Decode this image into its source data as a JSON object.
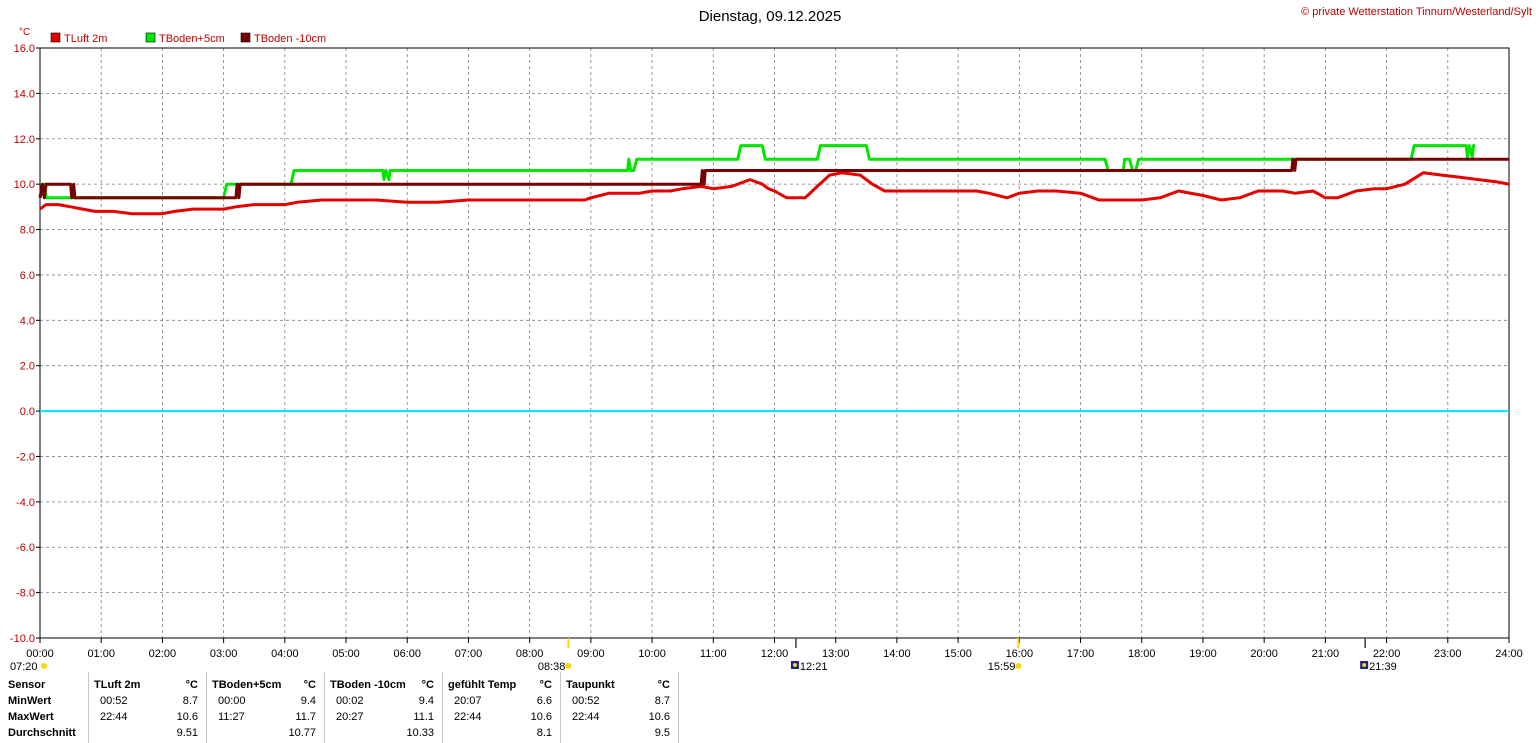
{
  "header": {
    "title": "Dienstag, 09.12.2025",
    "credit": "© private Wetterstation Tinnum/Westerland/Sylt"
  },
  "colors": {
    "tluft": "#e60000",
    "tboden5": "#00e600",
    "tboden10": "#780000",
    "zero_line": "#00e6ff",
    "axis_text": "#c00000",
    "grid": "#808080"
  },
  "chart_data": {
    "type": "line",
    "ylabel": "°C",
    "ylim": [
      -10,
      16
    ],
    "xlim": [
      0,
      24
    ],
    "yticks": [
      "16.0",
      "14.0",
      "12.0",
      "10.0",
      "8.0",
      "6.0",
      "4.0",
      "2.0",
      "0.0",
      "-2.0",
      "-4.0",
      "-6.0",
      "-8.0",
      "-10.0"
    ],
    "xticks": [
      "00:00",
      "01:00",
      "02:00",
      "03:00",
      "04:00",
      "05:00",
      "06:00",
      "07:00",
      "08:00",
      "09:00",
      "10:00",
      "11:00",
      "12:00",
      "13:00",
      "14:00",
      "15:00",
      "16:00",
      "17:00",
      "18:00",
      "19:00",
      "20:00",
      "21:00",
      "22:00",
      "23:00",
      "24:00"
    ],
    "grid": true,
    "legend_position": "top-left",
    "sun_markers": [
      {
        "label": "07:20",
        "kind": "sunrise"
      },
      {
        "label": "08:38",
        "kind": "sun"
      },
      {
        "label": "12:21",
        "kind": "moon"
      },
      {
        "label": "15:59",
        "kind": "sun"
      },
      {
        "label": "21:39",
        "kind": "moon"
      }
    ],
    "series": [
      {
        "name": "TLuft 2m",
        "color": "#e60000",
        "x": [
          0,
          0.1,
          0.3,
          0.5,
          0.7,
          0.9,
          1.0,
          1.2,
          1.5,
          1.8,
          2.0,
          2.2,
          2.5,
          2.8,
          3.0,
          3.2,
          3.5,
          4.0,
          4.2,
          4.6,
          5.0,
          5.3,
          5.5,
          6.0,
          6.5,
          7.0,
          7.5,
          8.0,
          8.5,
          8.9,
          9.0,
          9.3,
          9.8,
          10.0,
          10.3,
          10.5,
          10.8,
          11.0,
          11.3,
          11.6,
          11.8,
          11.9,
          12.0,
          12.2,
          12.5,
          12.7,
          12.9,
          13.1,
          13.4,
          13.6,
          13.8,
          14.0,
          14.5,
          15.0,
          15.3,
          15.5,
          15.8,
          16.0,
          16.3,
          16.6,
          17.0,
          17.3,
          17.6,
          18.0,
          18.3,
          18.6,
          19.0,
          19.3,
          19.6,
          19.9,
          20.1,
          20.3,
          20.5,
          20.8,
          21.0,
          21.2,
          21.5,
          21.8,
          22.0,
          22.3,
          22.6,
          22.9,
          23.2,
          23.5,
          23.8,
          24.0
        ],
        "values": [
          8.9,
          9.1,
          9.1,
          9.0,
          8.9,
          8.8,
          8.8,
          8.8,
          8.7,
          8.7,
          8.7,
          8.8,
          8.9,
          8.9,
          8.9,
          9.0,
          9.1,
          9.1,
          9.2,
          9.3,
          9.3,
          9.3,
          9.3,
          9.2,
          9.2,
          9.3,
          9.3,
          9.3,
          9.3,
          9.3,
          9.4,
          9.6,
          9.6,
          9.7,
          9.7,
          9.8,
          9.9,
          9.8,
          9.9,
          10.2,
          10.0,
          9.8,
          9.7,
          9.4,
          9.4,
          9.9,
          10.4,
          10.5,
          10.4,
          10.0,
          9.7,
          9.7,
          9.7,
          9.7,
          9.7,
          9.6,
          9.4,
          9.6,
          9.7,
          9.7,
          9.6,
          9.3,
          9.3,
          9.3,
          9.4,
          9.7,
          9.5,
          9.3,
          9.4,
          9.7,
          9.7,
          9.7,
          9.6,
          9.7,
          9.4,
          9.4,
          9.7,
          9.8,
          9.8,
          10.0,
          10.5,
          10.4,
          10.3,
          10.2,
          10.1,
          10.0
        ]
      },
      {
        "name": "TBoden+5cm",
        "color": "#00e600",
        "x": [
          0,
          0.08,
          0.1,
          0.5,
          3.0,
          3.05,
          3.08,
          3.3,
          4.1,
          4.15,
          5.6,
          5.62,
          5.65,
          5.7,
          5.72,
          5.75,
          9.6,
          9.62,
          9.65,
          9.7,
          9.75,
          11.4,
          11.45,
          11.8,
          11.85,
          12.7,
          12.75,
          13.5,
          13.55,
          17.4,
          17.45,
          17.7,
          17.72,
          17.8,
          17.85,
          17.9,
          17.95,
          20.5,
          22.4,
          22.45,
          23.3,
          23.32,
          23.35,
          23.4,
          23.42,
          23.45
        ],
        "values": [
          9.4,
          10.0,
          9.4,
          9.4,
          9.4,
          10.0,
          10.0,
          10.0,
          10.0,
          10.6,
          10.6,
          10.2,
          10.6,
          10.2,
          10.6,
          10.6,
          10.6,
          11.1,
          10.6,
          10.6,
          11.1,
          11.1,
          11.7,
          11.7,
          11.1,
          11.1,
          11.7,
          11.7,
          11.1,
          11.1,
          10.6,
          10.6,
          11.1,
          11.1,
          10.6,
          10.6,
          11.1,
          11.1,
          11.1,
          11.7,
          11.7,
          11.2,
          11.7,
          11.2,
          11.7,
          11.7
        ]
      },
      {
        "name": "TBoden -10cm",
        "color": "#780000",
        "x": [
          0,
          0.04,
          0.07,
          0.1,
          0.12,
          0.5,
          0.52,
          0.55,
          0.57,
          3.2,
          3.22,
          3.25,
          3.27,
          10.8,
          10.82,
          10.85,
          10.87,
          20.45,
          20.47,
          20.5,
          20.52,
          24.0
        ],
        "values": [
          9.4,
          10.0,
          9.4,
          10.0,
          10.0,
          10.0,
          9.4,
          10.0,
          9.4,
          9.4,
          10.0,
          9.4,
          10.0,
          10.0,
          10.6,
          10.0,
          10.6,
          10.6,
          11.1,
          10.6,
          11.1,
          11.1
        ]
      }
    ]
  },
  "stats": {
    "headers": [
      "Sensor",
      "TLuft 2m",
      "°C",
      "TBoden+5cm",
      "°C",
      "TBoden -10cm",
      "°C",
      "gefühlt Temp",
      "°C",
      "Taupunkt",
      "°C"
    ],
    "rows": [
      {
        "label": "MinWert",
        "values": [
          [
            "00:52",
            "8.7"
          ],
          [
            "00:00",
            "9.4"
          ],
          [
            "00:02",
            "9.4"
          ],
          [
            "20:07",
            "6.6"
          ],
          [
            "00:52",
            "8.7"
          ]
        ]
      },
      {
        "label": "MaxWert",
        "values": [
          [
            "22:44",
            "10.6"
          ],
          [
            "11:27",
            "11.7"
          ],
          [
            "20:27",
            "11.1"
          ],
          [
            "22:44",
            "10.6"
          ],
          [
            "22:44",
            "10.6"
          ]
        ]
      },
      {
        "label": "Durchschnitt",
        "values": [
          [
            "",
            "9.51"
          ],
          [
            "",
            "10.77"
          ],
          [
            "",
            "10.33"
          ],
          [
            "",
            "8.1"
          ],
          [
            "",
            "9.5"
          ]
        ]
      }
    ]
  }
}
